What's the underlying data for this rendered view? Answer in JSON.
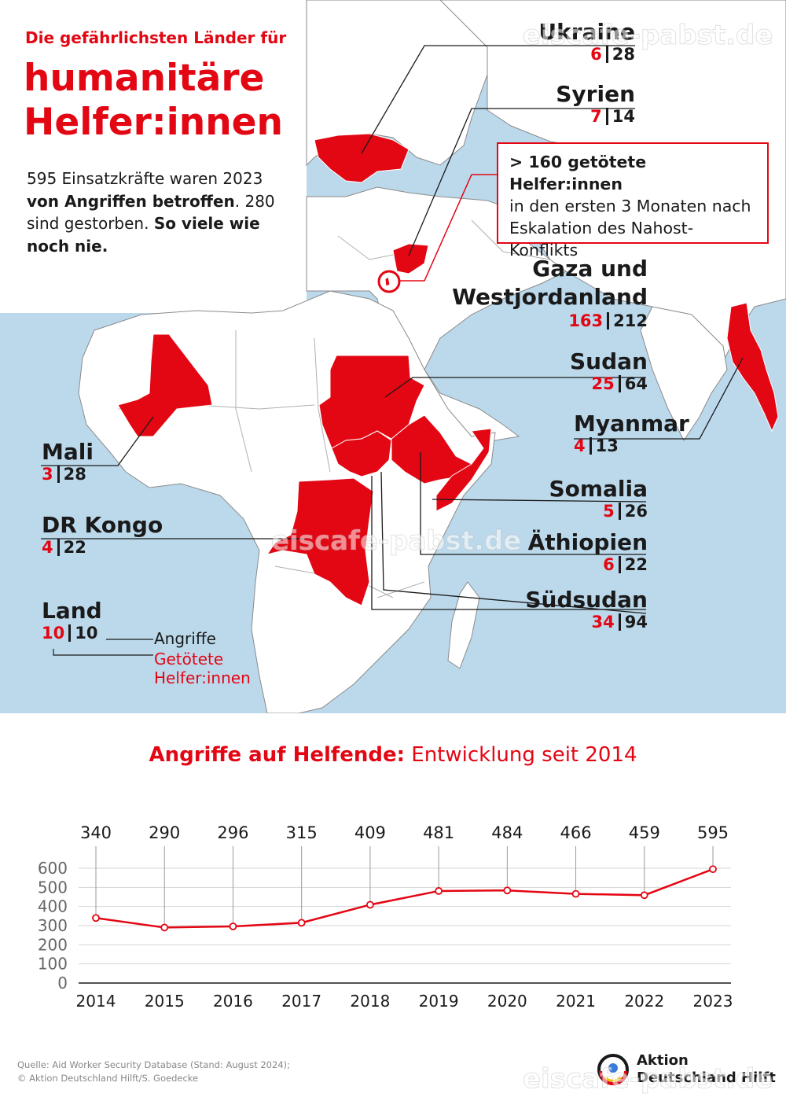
{
  "header": {
    "small": "Die gefährlichsten Länder für",
    "big": "humanitäre Helfer:innen"
  },
  "intro": {
    "p1": "595 Einsatzkräfte waren 2023 ",
    "b1": "von Angriffen betroffen",
    "p2": ". 280 sind gestorben. ",
    "b2": "So viele wie noch nie."
  },
  "callout": {
    "headline": "> 160 getötete Helfer:innen",
    "text": "in den ersten 3 Monaten nach Eskalation des Nahost-Konflikts"
  },
  "countries": [
    {
      "key": "ukraine",
      "name": "Ukraine",
      "killed": "6",
      "attacks": "28"
    },
    {
      "key": "syrien",
      "name": "Syrien",
      "killed": "7",
      "attacks": "14"
    },
    {
      "key": "gaza",
      "name": "Gaza und Westjordanland",
      "killed": "163",
      "attacks": "212"
    },
    {
      "key": "sudan",
      "name": "Sudan",
      "killed": "25",
      "attacks": "64"
    },
    {
      "key": "myanmar",
      "name": "Myanmar",
      "killed": "4",
      "attacks": "13"
    },
    {
      "key": "somalia",
      "name": "Somalia",
      "killed": "5",
      "attacks": "26"
    },
    {
      "key": "aethiopien",
      "name": "Äthiopien",
      "killed": "6",
      "attacks": "22"
    },
    {
      "key": "suedsudan",
      "name": "Südsudan",
      "killed": "34",
      "attacks": "94"
    },
    {
      "key": "mali",
      "name": "Mali",
      "killed": "3",
      "attacks": "28"
    },
    {
      "key": "drkongo",
      "name": "DR Kongo",
      "killed": "4",
      "attacks": "22"
    }
  ],
  "legend": {
    "title": "Land",
    "killed": "10",
    "attacks": "10",
    "attacks_label": "Angriffe",
    "killed_label": "Getötete Helfer:innen"
  },
  "chart_title": {
    "bold": "Angriffe auf Helfende:",
    "normal": " Entwicklung seit 2014"
  },
  "chart_data": {
    "type": "line",
    "x": [
      "2014",
      "2015",
      "2016",
      "2017",
      "2018",
      "2019",
      "2020",
      "2021",
      "2022",
      "2023"
    ],
    "values": [
      340,
      290,
      296,
      315,
      409,
      481,
      484,
      466,
      459,
      595
    ],
    "yticks": [
      0,
      100,
      200,
      300,
      400,
      500,
      600
    ],
    "ylim": [
      0,
      600
    ],
    "grid": true,
    "color": "#e30613"
  },
  "source": {
    "line1": "Quelle: Aid Worker Security Database (Stand: August 2024);",
    "line2": "© Aktion Deutschland Hilft/S. Goedecke"
  },
  "brand": {
    "line1": "Aktion",
    "line2": "Deutschland Hilft"
  },
  "watermark": "eiscafe-pabst.de",
  "colors": {
    "accent": "#e30613",
    "sea": "#bcd9ec",
    "land": "#ffffff",
    "border": "#8a8a8a"
  }
}
